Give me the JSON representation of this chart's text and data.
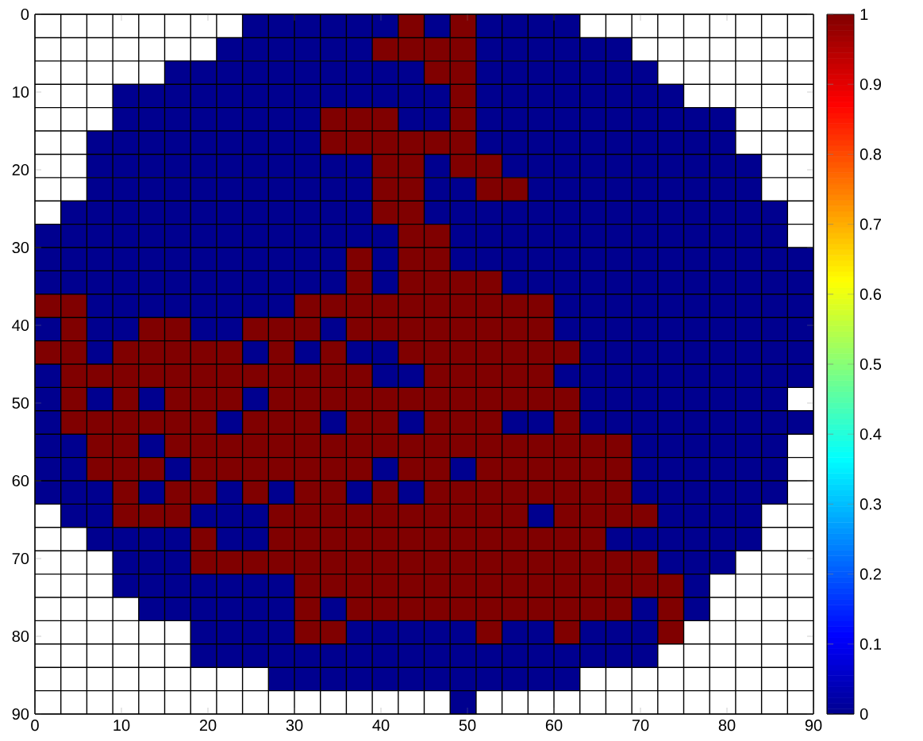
{
  "chart_data": {
    "type": "heatmap",
    "xlim": [
      0,
      90
    ],
    "ylim": [
      90,
      0
    ],
    "xticks": [
      0,
      10,
      20,
      30,
      40,
      50,
      60,
      70,
      80,
      90
    ],
    "yticks": [
      0,
      10,
      20,
      30,
      40,
      50,
      60,
      70,
      80,
      90
    ],
    "grid": true,
    "clim": [
      0,
      1
    ],
    "cticks": [
      0,
      0.1,
      0.2,
      0.3,
      0.4,
      0.5,
      0.6,
      0.7,
      0.8,
      0.9,
      1
    ],
    "cells": [
      [
        null,
        null,
        null,
        null,
        null,
        null,
        null,
        null,
        0,
        0,
        0,
        0,
        0,
        0,
        1,
        0,
        1,
        0,
        0,
        0,
        0,
        null,
        null,
        null,
        null,
        null,
        null,
        null,
        null,
        null
      ],
      [
        null,
        null,
        null,
        null,
        null,
        null,
        null,
        0,
        0,
        0,
        0,
        0,
        0,
        1,
        1,
        1,
        1,
        0,
        0,
        0,
        0,
        0,
        0,
        null,
        null,
        null,
        null,
        null,
        null,
        null
      ],
      [
        null,
        null,
        null,
        null,
        null,
        0,
        0,
        0,
        0,
        0,
        0,
        0,
        0,
        0,
        0,
        1,
        1,
        0,
        0,
        0,
        0,
        0,
        0,
        0,
        null,
        null,
        null,
        null,
        null,
        null
      ],
      [
        null,
        null,
        null,
        0,
        0,
        0,
        0,
        0,
        0,
        0,
        0,
        0,
        0,
        0,
        0,
        0,
        1,
        0,
        0,
        0,
        0,
        0,
        0,
        0,
        0,
        null,
        null,
        null,
        null,
        null
      ],
      [
        null,
        null,
        null,
        0,
        0,
        0,
        0,
        0,
        0,
        0,
        0,
        1,
        1,
        1,
        0,
        0,
        1,
        0,
        0,
        0,
        0,
        0,
        0,
        0,
        0,
        0,
        0,
        null,
        null,
        null
      ],
      [
        null,
        null,
        0,
        0,
        0,
        0,
        0,
        0,
        0,
        0,
        0,
        1,
        1,
        1,
        1,
        1,
        1,
        0,
        0,
        0,
        0,
        0,
        0,
        0,
        0,
        0,
        0,
        null,
        null,
        null
      ],
      [
        null,
        null,
        0,
        0,
        0,
        0,
        0,
        0,
        0,
        0,
        0,
        0,
        0,
        1,
        1,
        0,
        1,
        1,
        0,
        0,
        0,
        0,
        0,
        0,
        0,
        0,
        0,
        0,
        null,
        null
      ],
      [
        null,
        null,
        0,
        0,
        0,
        0,
        0,
        0,
        0,
        0,
        0,
        0,
        0,
        1,
        1,
        0,
        0,
        1,
        1,
        0,
        0,
        0,
        0,
        0,
        0,
        0,
        0,
        0,
        null,
        null
      ],
      [
        null,
        0,
        0,
        0,
        0,
        0,
        0,
        0,
        0,
        0,
        0,
        0,
        0,
        1,
        1,
        0,
        0,
        0,
        0,
        0,
        0,
        0,
        0,
        0,
        0,
        0,
        0,
        0,
        0,
        null
      ],
      [
        0,
        0,
        0,
        0,
        0,
        0,
        0,
        0,
        0,
        0,
        0,
        0,
        0,
        0,
        1,
        1,
        0,
        0,
        0,
        0,
        0,
        0,
        0,
        0,
        0,
        0,
        0,
        0,
        0,
        null
      ],
      [
        0,
        0,
        0,
        0,
        0,
        0,
        0,
        0,
        0,
        0,
        0,
        0,
        1,
        0,
        1,
        1,
        0,
        0,
        0,
        0,
        0,
        0,
        0,
        0,
        0,
        0,
        0,
        0,
        0,
        0
      ],
      [
        0,
        0,
        0,
        0,
        0,
        0,
        0,
        0,
        0,
        0,
        0,
        0,
        1,
        0,
        1,
        1,
        1,
        1,
        0,
        0,
        0,
        0,
        0,
        0,
        0,
        0,
        0,
        0,
        0,
        0
      ],
      [
        1,
        1,
        0,
        0,
        0,
        0,
        0,
        0,
        0,
        0,
        1,
        1,
        1,
        1,
        1,
        1,
        1,
        1,
        1,
        1,
        0,
        0,
        0,
        0,
        0,
        0,
        0,
        0,
        0,
        0
      ],
      [
        0,
        1,
        0,
        0,
        1,
        1,
        0,
        0,
        1,
        1,
        1,
        0,
        1,
        1,
        1,
        1,
        1,
        1,
        1,
        1,
        0,
        0,
        0,
        0,
        0,
        0,
        0,
        0,
        0,
        0
      ],
      [
        1,
        1,
        0,
        1,
        1,
        1,
        1,
        1,
        0,
        1,
        0,
        1,
        0,
        0,
        1,
        1,
        1,
        1,
        1,
        1,
        1,
        0,
        0,
        0,
        0,
        0,
        0,
        0,
        0,
        0
      ],
      [
        0,
        1,
        1,
        1,
        1,
        1,
        1,
        1,
        1,
        1,
        1,
        1,
        1,
        0,
        0,
        1,
        1,
        1,
        1,
        1,
        0,
        0,
        0,
        0,
        0,
        0,
        0,
        0,
        0,
        0
      ],
      [
        0,
        1,
        0,
        1,
        0,
        1,
        1,
        1,
        0,
        1,
        1,
        1,
        1,
        1,
        1,
        1,
        1,
        1,
        1,
        1,
        1,
        0,
        0,
        0,
        0,
        0,
        0,
        0,
        0,
        null
      ],
      [
        0,
        1,
        1,
        1,
        1,
        1,
        1,
        0,
        1,
        1,
        1,
        0,
        1,
        1,
        0,
        1,
        1,
        1,
        0,
        0,
        1,
        0,
        0,
        0,
        0,
        0,
        0,
        0,
        0,
        0
      ],
      [
        0,
        0,
        1,
        1,
        0,
        1,
        1,
        1,
        1,
        1,
        1,
        1,
        1,
        1,
        1,
        1,
        1,
        1,
        1,
        1,
        1,
        1,
        1,
        0,
        0,
        0,
        0,
        0,
        0,
        null
      ],
      [
        0,
        0,
        1,
        1,
        1,
        0,
        1,
        1,
        1,
        1,
        1,
        1,
        1,
        0,
        1,
        1,
        0,
        1,
        1,
        1,
        1,
        1,
        1,
        0,
        0,
        0,
        0,
        0,
        0,
        null
      ],
      [
        0,
        0,
        0,
        1,
        0,
        1,
        1,
        0,
        1,
        0,
        1,
        1,
        0,
        1,
        0,
        1,
        1,
        1,
        1,
        1,
        1,
        1,
        1,
        0,
        0,
        0,
        0,
        0,
        0,
        null
      ],
      [
        null,
        0,
        0,
        1,
        1,
        1,
        0,
        0,
        0,
        1,
        1,
        1,
        1,
        1,
        1,
        1,
        1,
        1,
        1,
        0,
        1,
        1,
        1,
        1,
        0,
        0,
        0,
        0,
        null,
        null
      ],
      [
        null,
        null,
        0,
        0,
        0,
        0,
        1,
        0,
        0,
        1,
        1,
        1,
        1,
        1,
        1,
        1,
        1,
        1,
        1,
        1,
        1,
        1,
        0,
        0,
        0,
        0,
        0,
        0,
        null,
        null
      ],
      [
        null,
        null,
        null,
        0,
        0,
        0,
        1,
        1,
        1,
        1,
        1,
        1,
        1,
        1,
        1,
        1,
        1,
        1,
        1,
        1,
        1,
        1,
        1,
        1,
        0,
        0,
        0,
        null,
        null,
        null
      ],
      [
        null,
        null,
        null,
        0,
        0,
        0,
        0,
        0,
        0,
        0,
        1,
        1,
        1,
        1,
        1,
        1,
        1,
        1,
        1,
        1,
        1,
        1,
        1,
        1,
        1,
        0,
        null,
        null,
        null,
        null
      ],
      [
        null,
        null,
        null,
        null,
        0,
        0,
        0,
        0,
        0,
        0,
        1,
        0,
        1,
        1,
        1,
        1,
        1,
        1,
        1,
        1,
        1,
        1,
        1,
        0,
        1,
        0,
        null,
        null,
        null,
        null
      ],
      [
        null,
        null,
        null,
        null,
        null,
        null,
        0,
        0,
        0,
        0,
        1,
        1,
        0,
        0,
        0,
        0,
        0,
        1,
        0,
        0,
        1,
        0,
        0,
        0,
        1,
        null,
        null,
        null,
        null,
        null
      ],
      [
        null,
        null,
        null,
        null,
        null,
        null,
        0,
        0,
        0,
        0,
        0,
        0,
        0,
        0,
        0,
        0,
        0,
        0,
        0,
        0,
        0,
        0,
        0,
        0,
        null,
        null,
        null,
        null,
        null,
        null
      ],
      [
        null,
        null,
        null,
        null,
        null,
        null,
        null,
        null,
        null,
        0,
        0,
        0,
        0,
        0,
        0,
        0,
        0,
        0,
        0,
        0,
        0,
        null,
        null,
        null,
        null,
        null,
        null,
        null,
        null,
        null
      ],
      [
        null,
        null,
        null,
        null,
        null,
        null,
        null,
        null,
        null,
        null,
        null,
        null,
        null,
        null,
        null,
        null,
        0,
        null,
        null,
        null,
        null,
        null,
        null,
        null,
        null,
        null,
        null,
        null,
        null,
        null
      ]
    ]
  }
}
